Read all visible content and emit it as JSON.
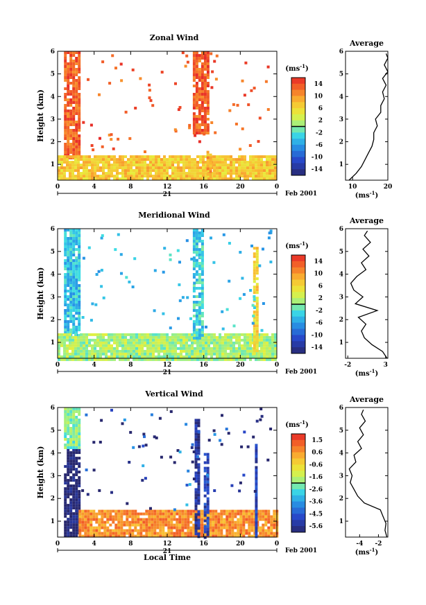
{
  "chart_data": [
    {
      "type": "heatmap",
      "title": "Zonal Wind",
      "ylabel": "Height (km)",
      "xlim": [
        0,
        24
      ],
      "ylim": [
        0.3,
        6
      ],
      "x_ticks": [
        "0",
        "4",
        "8",
        "12",
        "16",
        "20",
        "0"
      ],
      "y_ticks": [
        "1",
        "2",
        "3",
        "4",
        "5",
        "6"
      ],
      "day_label": "21",
      "date_label": "Feb 2001",
      "colorbar": {
        "unit": "(ms",
        "unit_sup": "-1",
        "unit_close": ")",
        "ticks": [
          "14",
          "10",
          "6",
          "2",
          "-2",
          "-6",
          "-10",
          "-14"
        ],
        "range": [
          -16,
          16
        ]
      },
      "features": [
        {
          "x": [
            0.7,
            2.3
          ],
          "y": [
            1.3,
            6.0
          ],
          "value": 13
        },
        {
          "x": [
            0.0,
            24.0
          ],
          "y": [
            0.3,
            1.4
          ],
          "value": 7
        },
        {
          "x": [
            14.8,
            16.6
          ],
          "y": [
            2.4,
            6.0
          ],
          "value": 13
        },
        {
          "x": [
            16.3,
            16.8
          ],
          "y": [
            0.4,
            1.6
          ],
          "value": 9
        }
      ],
      "average": {
        "title": "Average",
        "xlabel": "(ms",
        "xlabel_sup": "-1",
        "xlabel_close": ")",
        "xlim": [
          8,
          20
        ],
        "x_ticks": [
          "10",
          "20"
        ],
        "height": [
          0.3,
          0.6,
          0.9,
          1.2,
          1.5,
          1.8,
          2.1,
          2.4,
          2.7,
          3.0,
          3.3,
          3.6,
          3.9,
          4.2,
          4.5,
          4.8,
          5.1,
          5.4,
          5.7,
          5.9
        ],
        "values": [
          9,
          11,
          12.5,
          13.5,
          14.5,
          15.5,
          16,
          16,
          17,
          16.5,
          18,
          18,
          19,
          18.5,
          19.5,
          18.5,
          20,
          19,
          20,
          19.5
        ]
      }
    },
    {
      "type": "heatmap",
      "title": "Meridional Wind",
      "ylabel": "Height (km)",
      "xlim": [
        0,
        24
      ],
      "ylim": [
        0.3,
        6
      ],
      "x_ticks": [
        "0",
        "4",
        "8",
        "12",
        "16",
        "20",
        "0"
      ],
      "y_ticks": [
        "1",
        "2",
        "3",
        "4",
        "5",
        "6"
      ],
      "day_label": "21",
      "date_label": "Feb 2001",
      "colorbar": {
        "unit": "(ms",
        "unit_sup": "-1",
        "unit_close": ")",
        "ticks": [
          "14",
          "10",
          "6",
          "2",
          "-2",
          "-6",
          "-10",
          "-14"
        ],
        "range": [
          -16,
          16
        ]
      },
      "features": [
        {
          "x": [
            0.7,
            2.3
          ],
          "y": [
            1.3,
            6.0
          ],
          "value": -4
        },
        {
          "x": [
            0.0,
            24.0
          ],
          "y": [
            0.3,
            1.4
          ],
          "value": 1
        },
        {
          "x": [
            14.8,
            16.0
          ],
          "y": [
            1.2,
            6.0
          ],
          "value": -3
        },
        {
          "x": [
            21.4,
            21.8
          ],
          "y": [
            0.5,
            5.2
          ],
          "value": 6
        }
      ],
      "average": {
        "title": "Average",
        "xlabel": "(ms",
        "xlabel_sup": "-1",
        "xlabel_close": ")",
        "xlim": [
          -2.3,
          3.3
        ],
        "x_ticks": [
          "-2",
          "3"
        ],
        "height": [
          0.3,
          0.6,
          0.9,
          1.2,
          1.5,
          1.8,
          2.1,
          2.4,
          2.7,
          3.0,
          3.3,
          3.6,
          3.9,
          4.2,
          4.5,
          4.8,
          5.1,
          5.4,
          5.7,
          5.9
        ],
        "values": [
          3.2,
          2.6,
          1.2,
          0.2,
          -0.2,
          0.4,
          -0.6,
          1.9,
          -1.0,
          0.0,
          -1.2,
          -1.6,
          -0.8,
          0.4,
          -0.2,
          0.8,
          0.0,
          1.0,
          0.2,
          0.6
        ]
      }
    },
    {
      "type": "heatmap",
      "title": "Vertical Wind",
      "ylabel": "Height (km)",
      "xlabel": "Local Time",
      "xlim": [
        0,
        24
      ],
      "ylim": [
        0.3,
        6
      ],
      "x_ticks": [
        "0",
        "4",
        "8",
        "12",
        "16",
        "20",
        "0"
      ],
      "y_ticks": [
        "1",
        "2",
        "3",
        "4",
        "5",
        "6"
      ],
      "day_label": "21",
      "date_label": "Feb 2001",
      "colorbar": {
        "unit": "(ms",
        "unit_sup": "-1",
        "unit_close": ")",
        "ticks": [
          "1.5",
          "0.6",
          "-0.6",
          "-1.6",
          "-2.6",
          "-3.6",
          "-4.5",
          "-5.6"
        ],
        "range": [
          -6,
          2
        ]
      },
      "features": [
        {
          "x": [
            0.7,
            2.3
          ],
          "y": [
            0.4,
            4.2
          ],
          "value": -6
        },
        {
          "x": [
            0.7,
            2.3
          ],
          "y": [
            4.2,
            6.0
          ],
          "value": -2
        },
        {
          "x": [
            2.3,
            24.0
          ],
          "y": [
            0.3,
            1.5
          ],
          "value": 0.6
        },
        {
          "x": [
            15.0,
            15.4
          ],
          "y": [
            0.3,
            5.5
          ],
          "value": -5.5
        },
        {
          "x": [
            16.0,
            16.5
          ],
          "y": [
            0.3,
            4.0
          ],
          "value": -5
        },
        {
          "x": [
            21.6,
            21.9
          ],
          "y": [
            0.3,
            4.4
          ],
          "value": -5
        }
      ],
      "average": {
        "title": "Average",
        "xlabel": "(ms",
        "xlabel_sup": "-1",
        "xlabel_close": ")",
        "xlim": [
          -5.5,
          -1.0
        ],
        "x_ticks": [
          "-4",
          "-2"
        ],
        "height": [
          0.3,
          0.6,
          0.9,
          1.2,
          1.5,
          1.8,
          2.1,
          2.4,
          2.7,
          3.0,
          3.3,
          3.6,
          3.9,
          4.2,
          4.5,
          4.8,
          5.1,
          5.4,
          5.7,
          5.9
        ],
        "values": [
          -1.1,
          -1.3,
          -1.2,
          -1.5,
          -1.8,
          -3.5,
          -4.2,
          -4.6,
          -5.0,
          -4.8,
          -5.1,
          -4.4,
          -4.6,
          -3.8,
          -4.2,
          -3.6,
          -4.0,
          -3.4,
          -3.8,
          -3.6
        ]
      }
    }
  ]
}
